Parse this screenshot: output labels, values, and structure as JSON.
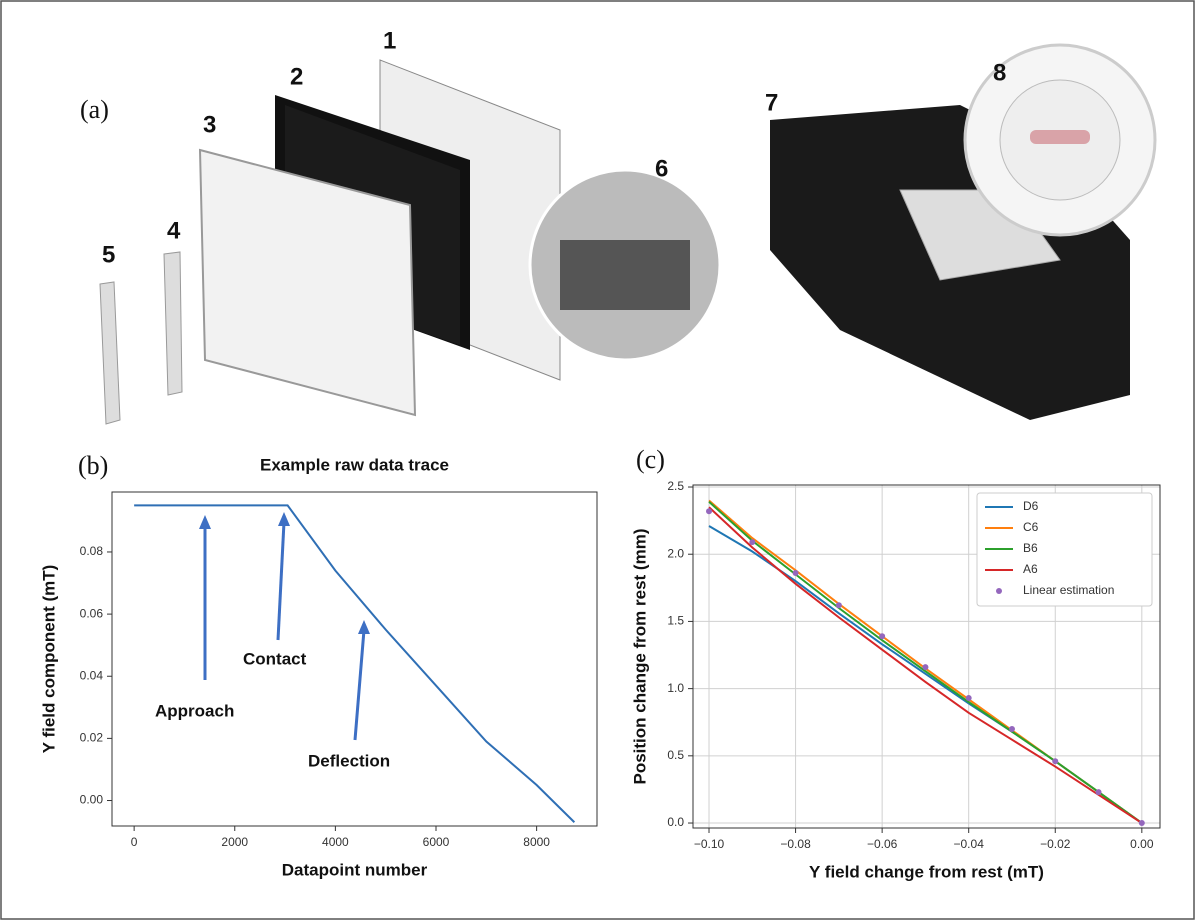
{
  "figure": {
    "panel_labels": [
      "(a)",
      "(b)",
      "(c)"
    ],
    "part_numbers": [
      "1",
      "2",
      "3",
      "4",
      "5",
      "6",
      "7",
      "8"
    ]
  },
  "chart_data": [
    {
      "type": "line",
      "title": "Example raw data trace",
      "x_label": "Datapoint number",
      "y_label": "Y field component (mT)",
      "x": [
        0,
        3050,
        4000,
        5000,
        6000,
        7000,
        8000,
        8750
      ],
      "values": [
        0.095,
        0.095,
        0.074,
        0.055,
        0.037,
        0.019,
        0.005,
        -0.007
      ],
      "color": "#2f6fb5",
      "xlim": [
        -440,
        9200
      ],
      "ylim": [
        -0.0082,
        0.0993
      ],
      "xticks": [
        0,
        2000,
        4000,
        6000,
        8000
      ],
      "yticks": [
        {
          "value": 0,
          "label": "0.00"
        },
        {
          "value": 0.02,
          "label": "0.02"
        },
        {
          "value": 0.04,
          "label": "0.04"
        },
        {
          "value": 0.06,
          "label": "0.06"
        },
        {
          "value": 0.08,
          "label": "0.08"
        }
      ],
      "grid": false,
      "annotations": [
        "Approach",
        "Contact",
        "Deflection"
      ]
    },
    {
      "type": "line",
      "x_label": "Y field change from rest (mT)",
      "y_label": "Position change from rest (mm)",
      "x": [
        -0.1,
        -0.09,
        -0.08,
        -0.07,
        -0.06,
        -0.05,
        -0.04,
        -0.03,
        -0.02,
        -0.01,
        0
      ],
      "series": [
        {
          "name": "D6",
          "color": "#1f77b4",
          "values": [
            2.21,
            2.02,
            1.8,
            1.56,
            1.33,
            1.11,
            0.89,
            0.68,
            0.46,
            0.23,
            0
          ]
        },
        {
          "name": "C6",
          "color": "#ff7f0e",
          "values": [
            2.4,
            2.12,
            1.88,
            1.63,
            1.39,
            1.15,
            0.92,
            0.69,
            0.46,
            0.23,
            0
          ]
        },
        {
          "name": "B6",
          "color": "#2ca02c",
          "values": [
            2.39,
            2.1,
            1.85,
            1.6,
            1.36,
            1.13,
            0.9,
            0.68,
            0.46,
            0.23,
            0
          ]
        },
        {
          "name": "A6",
          "color": "#d62728",
          "values": [
            2.35,
            2.05,
            1.78,
            1.53,
            1.29,
            1.05,
            0.82,
            0.62,
            0.42,
            0.21,
            0
          ]
        },
        {
          "name": "Linear estimation",
          "color": "#9467bd",
          "kind": "scatter",
          "values": [
            2.32,
            2.09,
            1.86,
            1.62,
            1.39,
            1.16,
            0.93,
            0.7,
            0.46,
            0.23,
            0
          ]
        }
      ],
      "xlim": [
        -0.1037,
        0.0042
      ],
      "ylim": [
        -0.037,
        2.515
      ],
      "xticks": [
        {
          "value": -0.1,
          "label": "−0.10"
        },
        {
          "value": -0.08,
          "label": "−0.08"
        },
        {
          "value": -0.06,
          "label": "−0.06"
        },
        {
          "value": -0.04,
          "label": "−0.04"
        },
        {
          "value": -0.02,
          "label": "−0.02"
        },
        {
          "value": 0,
          "label": "0.00"
        }
      ],
      "yticks": [
        {
          "value": 0,
          "label": "0.0"
        },
        {
          "value": 0.5,
          "label": "0.5"
        },
        {
          "value": 1,
          "label": "1.0"
        },
        {
          "value": 1.5,
          "label": "1.5"
        },
        {
          "value": 2,
          "label": "2.0"
        },
        {
          "value": 2.5,
          "label": "2.5"
        }
      ],
      "grid": true,
      "legend": "upper right"
    }
  ]
}
